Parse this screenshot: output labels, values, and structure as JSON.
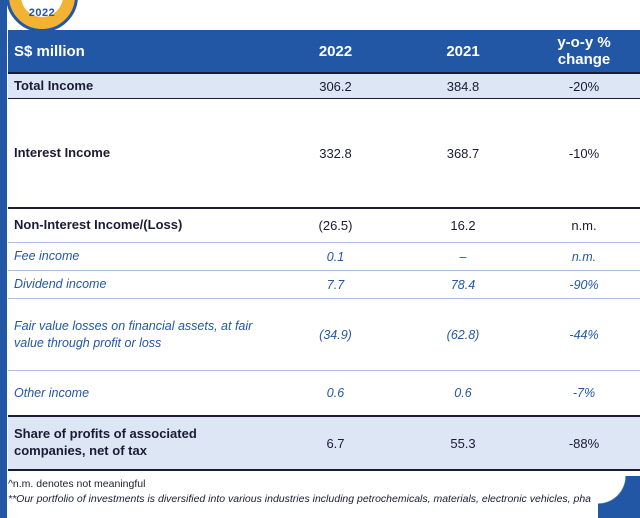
{
  "badge": {
    "year_label": "2022"
  },
  "table": {
    "unit_header": "S$ million",
    "col_2022": "2022",
    "col_2021": "2021",
    "col_yoy_line1": "y-o-y %",
    "col_yoy_line2": "change",
    "rows": [
      {
        "label": "Total Income",
        "y2022": "306.2",
        "y2021": "384.8",
        "yoy": "-20%"
      },
      {
        "label": "Interest Income",
        "y2022": "332.8",
        "y2021": "368.7",
        "yoy": "-10%"
      },
      {
        "label": "Non-Interest Income/(Loss)",
        "y2022": "(26.5)",
        "y2021": "16.2",
        "yoy": "n.m."
      },
      {
        "label": "Fee income",
        "y2022": "0.1",
        "y2021": "–",
        "yoy": "n.m."
      },
      {
        "label": "Dividend income",
        "y2022": "7.7",
        "y2021": "78.4",
        "yoy": "-90%"
      },
      {
        "label": "Fair value losses on financial assets, at fair value through profit or loss",
        "y2022": "(34.9)",
        "y2021": "(62.8)",
        "yoy": "-44%"
      },
      {
        "label": "Other income",
        "y2022": "0.6",
        "y2021": "0.6",
        "yoy": "-7%"
      },
      {
        "label": "Share of profits of associated companies, net of tax",
        "y2022": "6.7",
        "y2021": "55.3",
        "yoy": "-88%"
      }
    ]
  },
  "footnotes": {
    "line1": "^n.m. denotes not meaningful",
    "line2": "**Our portfolio of investments is diversified into various industries including petrochemicals, materials, electronic vehicles, pha"
  },
  "colors": {
    "header_blue": "#2257a5",
    "row_highlight": "#dce6f4",
    "sub_row_text": "#2257a5",
    "badge_gold": "#f2b233"
  }
}
